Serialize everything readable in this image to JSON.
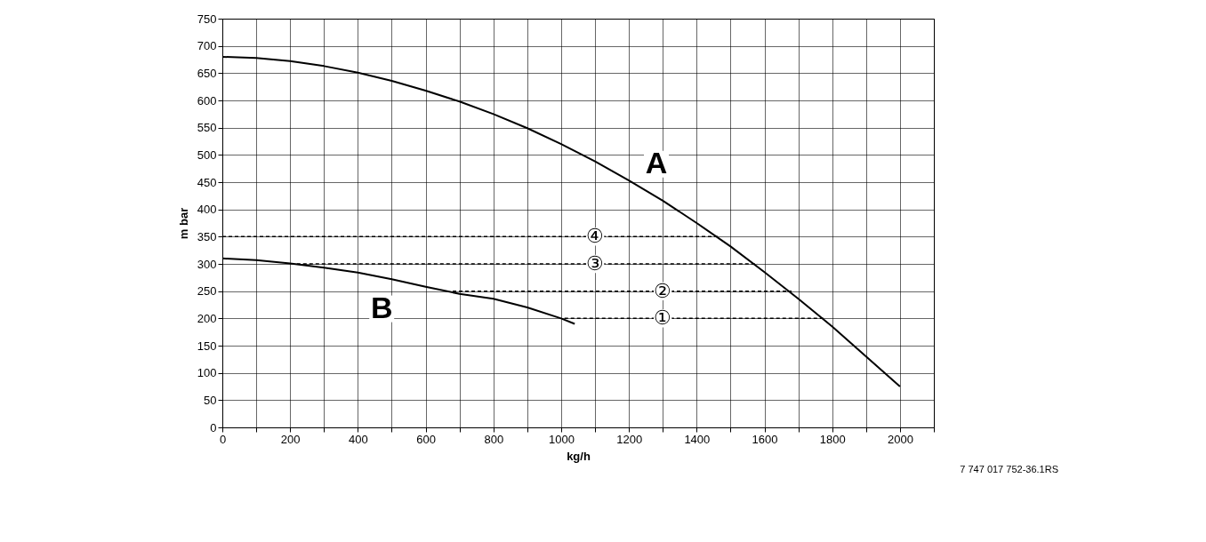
{
  "chart_data": {
    "type": "line",
    "xlabel": "kg/h",
    "ylabel": "m bar",
    "xlim": [
      0,
      2100
    ],
    "ylim": [
      0,
      750
    ],
    "xticks": [
      0,
      {
        "value": 100,
        "label": null
      },
      200,
      {
        "value": 300,
        "label": null
      },
      400,
      {
        "value": 500,
        "label": null
      },
      600,
      {
        "value": 700,
        "label": null
      },
      800,
      {
        "value": 900,
        "label": null
      },
      1000,
      {
        "value": 1100,
        "label": null
      },
      1200,
      {
        "value": 1300,
        "label": null
      },
      1400,
      {
        "value": 1500,
        "label": null
      },
      1600,
      {
        "value": 1700,
        "label": null
      },
      1800,
      {
        "value": 1900,
        "label": null
      },
      2000,
      {
        "value": 2100,
        "label": null
      }
    ],
    "yticks": [
      0,
      50,
      100,
      150,
      200,
      250,
      300,
      350,
      400,
      450,
      500,
      550,
      600,
      650,
      700,
      750
    ],
    "grid": true,
    "line_style": "solid",
    "series": [
      {
        "color": "#000000",
        "x": [
          0,
          100,
          200,
          300,
          400,
          500,
          600,
          700,
          800,
          900,
          1000,
          1100,
          1200,
          1300,
          1400,
          1500,
          1600,
          1700,
          1800,
          1900,
          2000
        ],
        "values": [
          680,
          678,
          672,
          663,
          651,
          636,
          618,
          598,
          575,
          549,
          520,
          488,
          453,
          416,
          375,
          332,
          285,
          236,
          185,
          130,
          75
        ]
      },
      {
        "color": "#000000",
        "x": [
          0,
          100,
          200,
          300,
          400,
          500,
          600,
          700,
          800,
          900,
          1000,
          1040
        ],
        "values": [
          310,
          307,
          301,
          293,
          284,
          272,
          258,
          245,
          236,
          220,
          200,
          190
        ]
      },
      {
        "color": "#000000",
        "line_style": "dashed",
        "x": [
          0,
          1470
        ],
        "values": [
          350,
          350
        ]
      },
      {
        "color": "#000000",
        "line_style": "dashed",
        "x": [
          220,
          1580
        ],
        "values": [
          300,
          300
        ]
      },
      {
        "color": "#000000",
        "line_style": "dashed",
        "x": [
          680,
          1680
        ],
        "values": [
          250,
          250
        ]
      },
      {
        "color": "#000000",
        "line_style": "dashed",
        "x": [
          1010,
          1780
        ],
        "values": [
          200,
          200
        ]
      }
    ],
    "annotations": [
      "A",
      "B",
      "④",
      "③",
      "②",
      "①",
      "7 747 017 752-36.1RS"
    ]
  }
}
